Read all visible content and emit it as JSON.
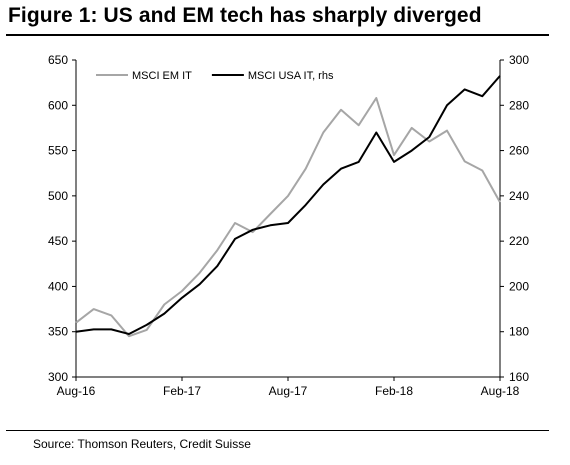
{
  "figure": {
    "title": "Figure 1: US and EM tech has sharply diverged",
    "source": "Source: Thomson Reuters, Credit Suisse"
  },
  "chart_data": {
    "type": "line",
    "title": "Figure 1: US and EM tech has sharply diverged",
    "x_ticks": [
      "Aug-16",
      "Feb-17",
      "Aug-17",
      "Feb-18",
      "Aug-18"
    ],
    "x_range": [
      "2016-08",
      "2018-08"
    ],
    "y_left": {
      "ticks": [
        300,
        350,
        400,
        450,
        500,
        550,
        600,
        650
      ],
      "ylim": [
        300,
        650
      ]
    },
    "y_right": {
      "ticks": [
        160,
        180,
        200,
        220,
        240,
        260,
        280,
        300
      ],
      "ylim": [
        160,
        300
      ]
    },
    "grid": false,
    "legend": "top-left",
    "series": [
      {
        "name": "MSCI EM IT",
        "axis": "left",
        "color": "#a6a6a6",
        "x": [
          "2016-08",
          "2016-09",
          "2016-10",
          "2016-11",
          "2016-12",
          "2017-01",
          "2017-02",
          "2017-03",
          "2017-04",
          "2017-05",
          "2017-06",
          "2017-07",
          "2017-08",
          "2017-09",
          "2017-10",
          "2017-11",
          "2017-12",
          "2018-01",
          "2018-02",
          "2018-03",
          "2018-04",
          "2018-05",
          "2018-06",
          "2018-07",
          "2018-08"
        ],
        "values": [
          360,
          375,
          368,
          345,
          352,
          380,
          395,
          415,
          440,
          470,
          460,
          480,
          500,
          530,
          570,
          595,
          578,
          608,
          545,
          575,
          560,
          572,
          538,
          528,
          493
        ]
      },
      {
        "name": "MSCI USA IT, rhs",
        "axis": "right",
        "color": "#000000",
        "x": [
          "2016-08",
          "2016-09",
          "2016-10",
          "2016-11",
          "2016-12",
          "2017-01",
          "2017-02",
          "2017-03",
          "2017-04",
          "2017-05",
          "2017-06",
          "2017-07",
          "2017-08",
          "2017-09",
          "2017-10",
          "2017-11",
          "2017-12",
          "2018-01",
          "2018-02",
          "2018-03",
          "2018-04",
          "2018-05",
          "2018-06",
          "2018-07",
          "2018-08"
        ],
        "values": [
          180,
          181,
          181,
          179,
          183,
          188,
          195,
          201,
          209,
          221,
          225,
          227,
          228,
          236,
          245,
          252,
          255,
          268,
          255,
          260,
          266,
          280,
          287,
          284,
          293
        ]
      }
    ]
  }
}
